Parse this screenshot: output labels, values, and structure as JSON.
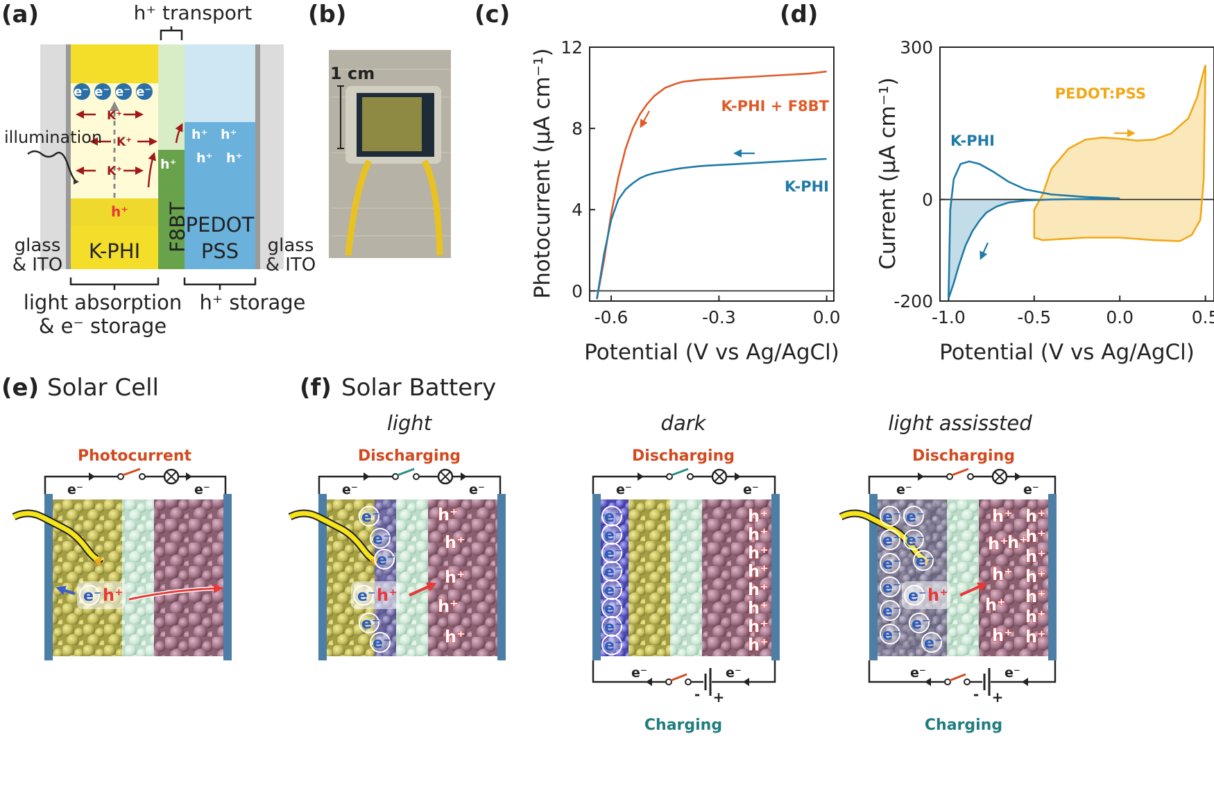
{
  "panel_a": {
    "label": "(a)",
    "h_transport": "h⁺ transport",
    "illumination": "illumination",
    "e_symbol": "e⁻",
    "k_ion": "K⁺",
    "hole": "h⁺",
    "f8bt": "F8BT",
    "kphi": "K-PHI",
    "pedot_1": "PEDOT",
    "pedot_2": "PSS",
    "glass_1": "glass",
    "glass_2": "& ITO",
    "absorption_1": "light absorption",
    "absorption_2": "& e⁻ storage",
    "h_storage": "h⁺ storage"
  },
  "panel_b": {
    "label": "(b)",
    "scale": "1 cm"
  },
  "panel_c": {
    "label": "(c)"
  },
  "panel_d": {
    "label": "(d)"
  },
  "panel_e": {
    "label": "(e)",
    "title": "Solar Cell",
    "circuit": "Photocurrent",
    "e_symbol": "e⁻",
    "hole": "h⁺"
  },
  "panel_f": {
    "label": "(f)",
    "title": "Solar Battery",
    "e_symbol": "e⁻",
    "hole": "h⁺",
    "minus": "-",
    "plus": "+",
    "light": {
      "condition": "light",
      "circuit": "Discharging",
      "electron_count": 8,
      "hole_count": 5
    },
    "dark": {
      "condition": "dark",
      "circuit": "Discharging",
      "charging": "Charging",
      "electron_count": 8,
      "hole_count": 8
    },
    "assisted": {
      "condition": "light assissted",
      "circuit": "Discharging",
      "charging": "Charging",
      "electron_count": 11,
      "hole_count": 13
    }
  },
  "colors": {
    "kphi_f8bt_curve": "#e05a28",
    "kphi_curve": "#1f7aa8",
    "pedot_curve": "#f0a818",
    "discharging": "#d24a1e",
    "charging": "#207c7e",
    "hole": "#e83838",
    "electron": "#2d5bb8"
  },
  "chart_data": [
    {
      "type": "line",
      "xlabel": "Potential (V vs Ag/AgCl)",
      "ylabel": "Photocurrent (μA cm⁻¹)",
      "xlim": [
        -0.66,
        0.02
      ],
      "ylim": [
        -0.5,
        12
      ],
      "xticks": [
        -0.6,
        -0.3,
        0.0
      ],
      "xtick_labels": [
        "-0.6",
        "-0.3",
        "0.0"
      ],
      "yticks": [
        0,
        4,
        8,
        12
      ],
      "ytick_labels": [
        "0",
        "4",
        "8",
        "12"
      ],
      "zero_line": true,
      "series": [
        {
          "name": "K-PHI + F8BT",
          "color_key": "kphi_f8bt_curve",
          "x": [
            -0.64,
            -0.62,
            -0.6,
            -0.58,
            -0.56,
            -0.54,
            -0.52,
            -0.5,
            -0.48,
            -0.45,
            -0.42,
            -0.4,
            -0.35,
            -0.3,
            -0.25,
            -0.2,
            -0.15,
            -0.1,
            -0.05,
            0.0
          ],
          "y": [
            -0.4,
            1.5,
            3.8,
            5.6,
            7.0,
            8.0,
            8.7,
            9.2,
            9.6,
            10.0,
            10.2,
            10.3,
            10.4,
            10.45,
            10.5,
            10.55,
            10.6,
            10.65,
            10.7,
            10.8
          ]
        },
        {
          "name": "K-PHI",
          "color_key": "kphi_curve",
          "x": [
            -0.64,
            -0.62,
            -0.6,
            -0.58,
            -0.56,
            -0.54,
            -0.52,
            -0.5,
            -0.48,
            -0.45,
            -0.42,
            -0.4,
            -0.35,
            -0.3,
            -0.25,
            -0.2,
            -0.15,
            -0.1,
            -0.05,
            0.0
          ],
          "y": [
            -0.4,
            1.8,
            3.5,
            4.5,
            5.0,
            5.3,
            5.55,
            5.7,
            5.8,
            5.9,
            6.0,
            6.05,
            6.15,
            6.2,
            6.25,
            6.3,
            6.35,
            6.4,
            6.45,
            6.5
          ]
        }
      ],
      "annotations": [
        {
          "text": "K-PHI + F8BT",
          "series": 0
        },
        {
          "text": "K-PHI",
          "series": 1
        }
      ]
    },
    {
      "type": "line",
      "xlabel": "Potential (V vs Ag/AgCl)",
      "ylabel": "Current (μA cm⁻¹)",
      "xlim": [
        -1.05,
        0.55
      ],
      "ylim": [
        -200,
        300
      ],
      "xticks": [
        -1.0,
        -0.5,
        0.0,
        0.5
      ],
      "xtick_labels": [
        "-1.0",
        "-0.5",
        "0.0",
        "0.5"
      ],
      "yticks": [
        -200,
        0,
        300
      ],
      "ytick_labels": [
        "-200",
        "0",
        "300"
      ],
      "zero_line": true,
      "series": [
        {
          "name": "K-PHI",
          "color_key": "kphi_curve",
          "closed": true,
          "fill_below_zero": true,
          "x": [
            0.0,
            -0.2,
            -0.4,
            -0.55,
            -0.65,
            -0.72,
            -0.78,
            -0.82,
            -0.86,
            -0.9,
            -0.94,
            -0.97,
            -1.0,
            -0.99,
            -0.97,
            -0.93,
            -0.88,
            -0.82,
            -0.74,
            -0.65,
            -0.55,
            -0.4,
            -0.2,
            0.0
          ],
          "y": [
            2,
            1,
            0,
            -2,
            -6,
            -14,
            -26,
            -42,
            -62,
            -90,
            -130,
            -165,
            -195,
            -20,
            40,
            70,
            75,
            70,
            55,
            35,
            20,
            10,
            5,
            2
          ]
        },
        {
          "name": "PEDOT:PSS",
          "color_key": "pedot_curve",
          "closed": true,
          "fill_area": true,
          "x": [
            -0.5,
            -0.45,
            -0.4,
            -0.3,
            -0.2,
            -0.1,
            0.0,
            0.1,
            0.2,
            0.3,
            0.4,
            0.45,
            0.48,
            0.5,
            0.49,
            0.47,
            0.42,
            0.35,
            0.2,
            0.0,
            -0.2,
            -0.35,
            -0.45,
            -0.5
          ],
          "y": [
            -20,
            10,
            60,
            100,
            118,
            122,
            120,
            116,
            118,
            130,
            160,
            200,
            240,
            265,
            40,
            -40,
            -70,
            -82,
            -80,
            -75,
            -75,
            -78,
            -80,
            -75
          ]
        }
      ],
      "annotations": [
        {
          "text": "K-PHI",
          "series": 0
        },
        {
          "text": "PEDOT:PSS",
          "series": 1
        }
      ]
    }
  ]
}
